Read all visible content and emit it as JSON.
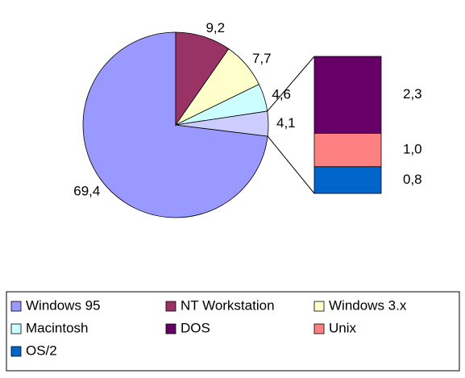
{
  "chart_data": {
    "type": "bar-of-pie",
    "pie": {
      "categories": [
        "Windows 95",
        "NT Workstation",
        "Windows 3.x",
        "Macintosh",
        null
      ],
      "values": [
        69.4,
        9.2,
        7.7,
        4.6,
        4.1
      ],
      "value_labels": [
        "69,4",
        "9,2",
        "7,7",
        "4,6",
        "4,1"
      ],
      "colors": [
        "#9999ff",
        "#993366",
        "#ffffcc",
        "#ccffff",
        "#ccccff"
      ]
    },
    "bar": {
      "categories": [
        "DOS",
        "Unix",
        "OS/2"
      ],
      "values": [
        2.3,
        1.0,
        0.8
      ],
      "value_labels": [
        "2,3",
        "1,0",
        "0,8"
      ],
      "colors": [
        "#660066",
        "#ff8080",
        "#0066cc"
      ]
    }
  }
}
